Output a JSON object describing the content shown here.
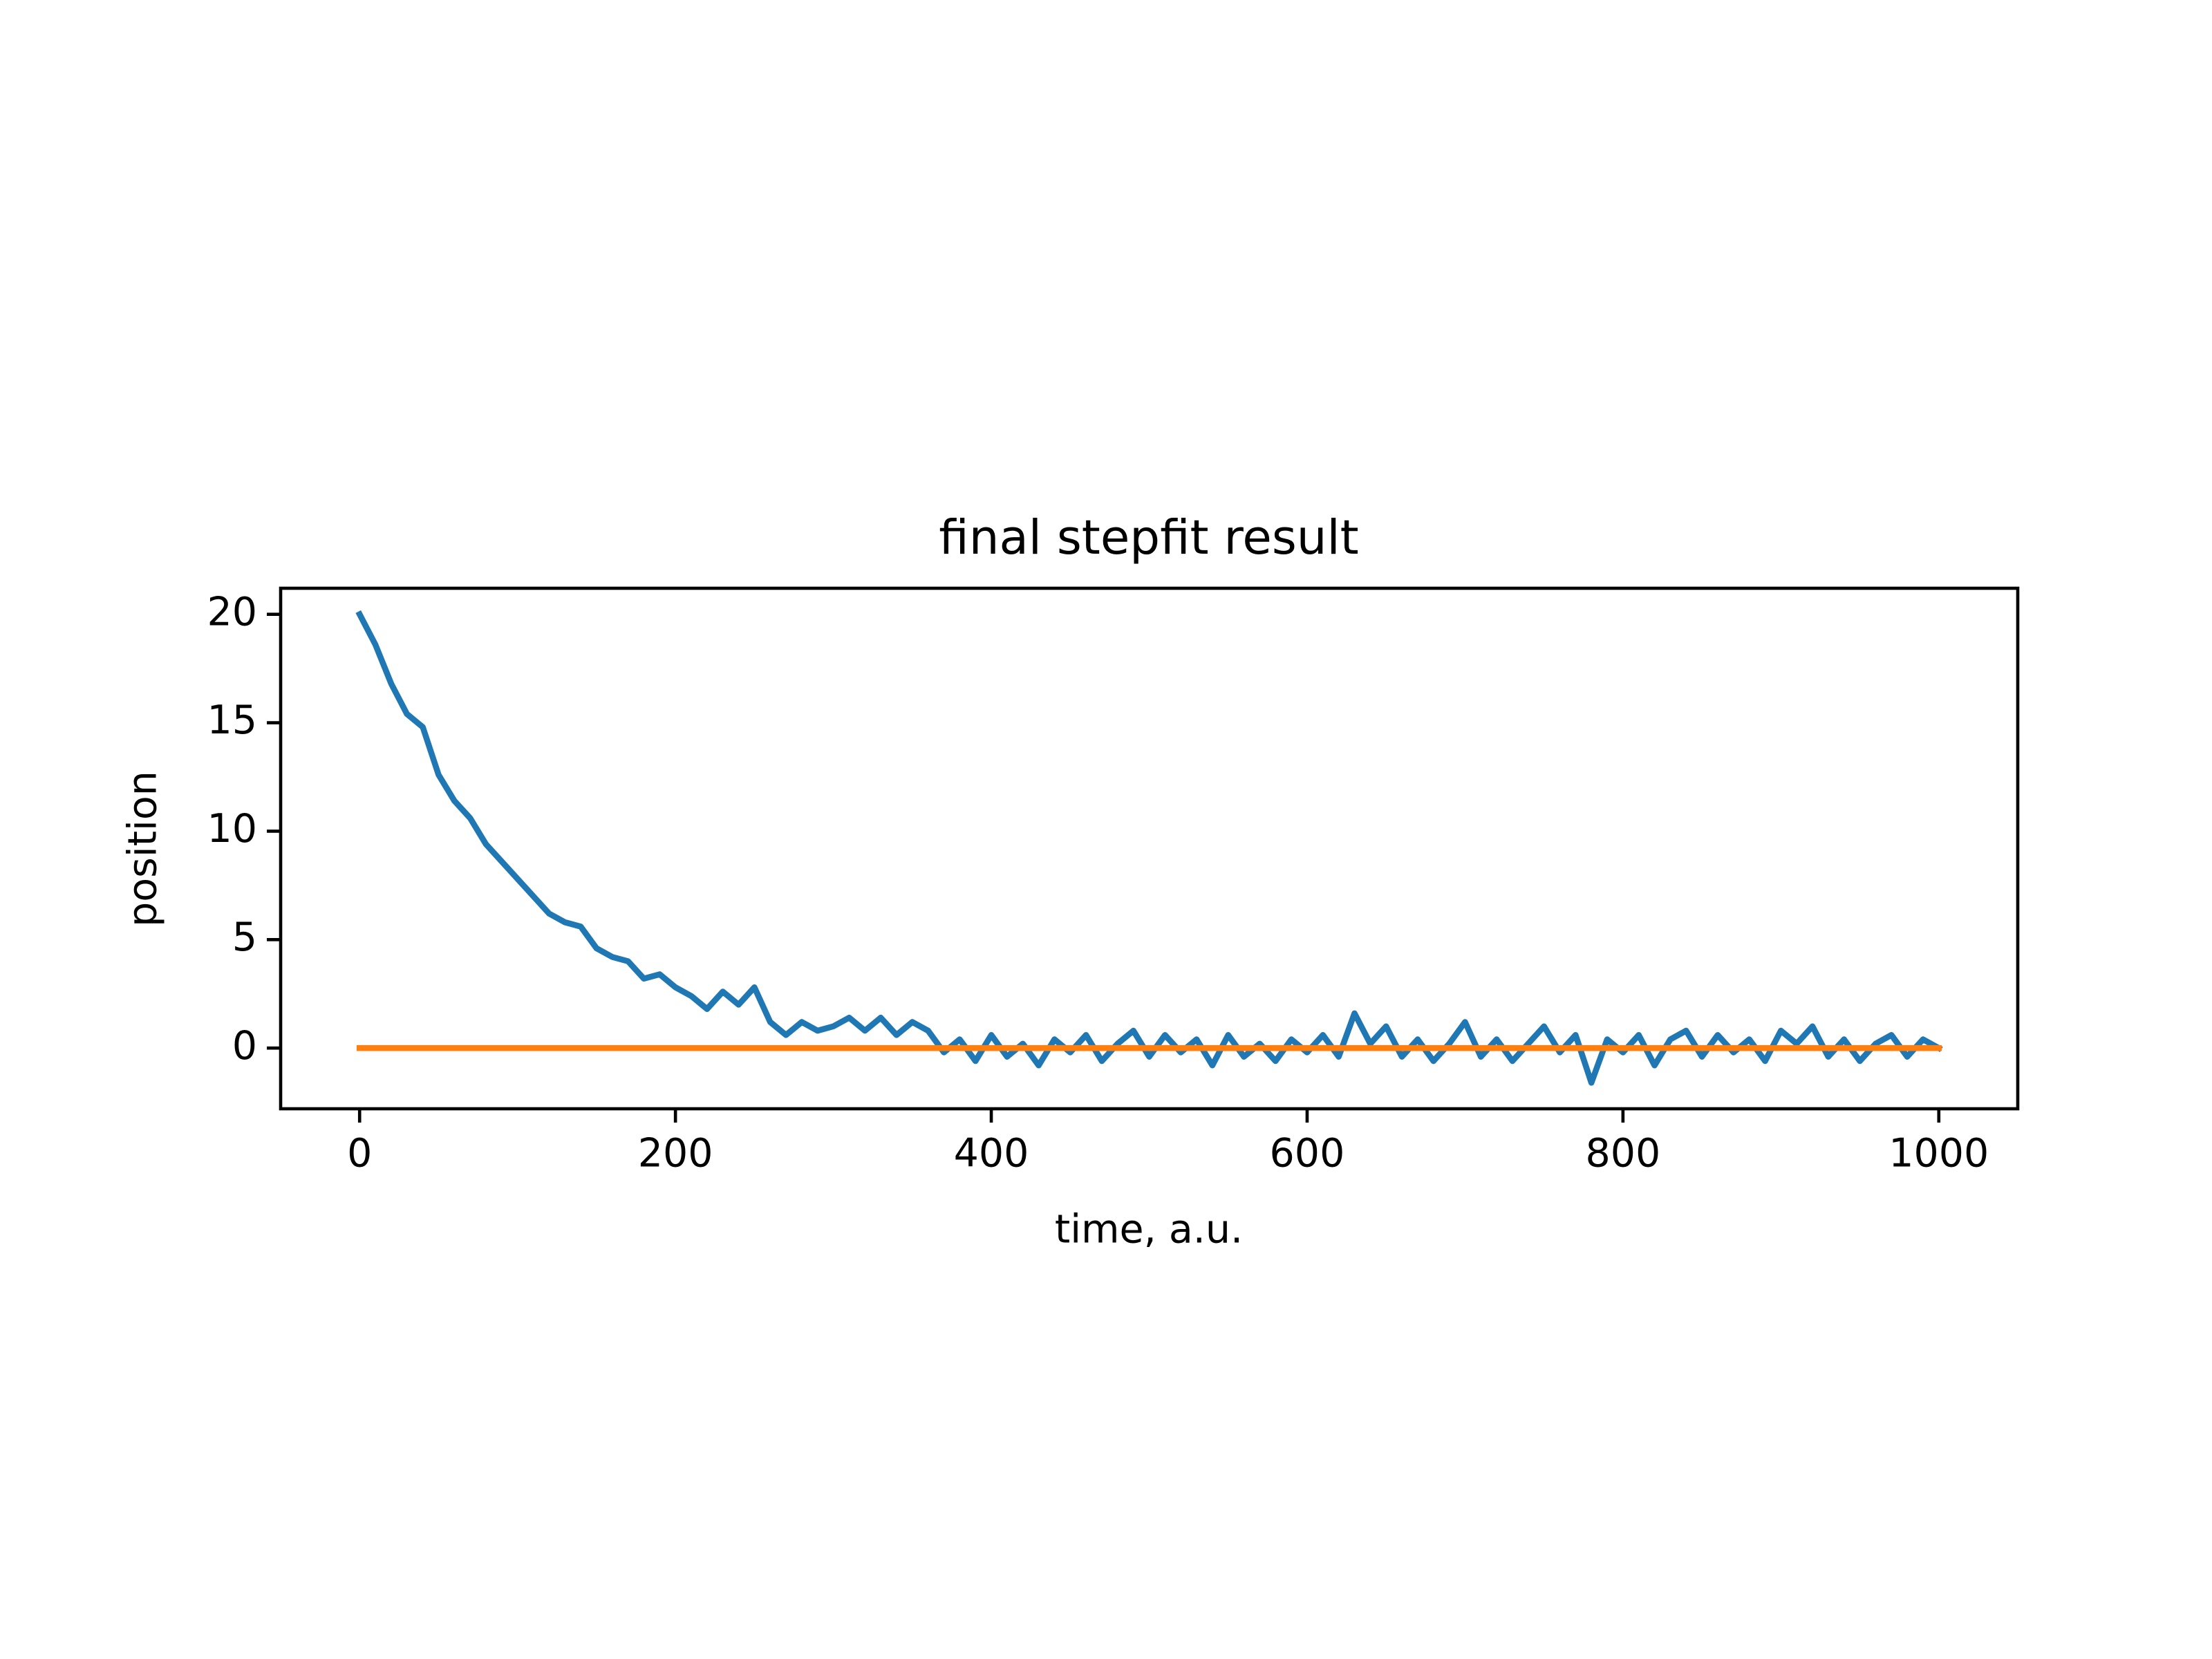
{
  "chart_data": {
    "type": "line",
    "title": "final stepfit result",
    "x_label": "time, a.u.",
    "y_label": "position",
    "x": [
      0,
      10,
      20,
      30,
      40,
      50,
      60,
      70,
      80,
      90,
      100,
      110,
      120,
      130,
      140,
      150,
      160,
      170,
      180,
      190,
      200,
      210,
      220,
      230,
      240,
      250,
      260,
      270,
      280,
      290,
      300,
      310,
      320,
      330,
      340,
      350,
      360,
      370,
      380,
      390,
      400,
      410,
      420,
      430,
      440,
      450,
      460,
      470,
      480,
      490,
      500,
      510,
      520,
      530,
      540,
      550,
      560,
      570,
      580,
      590,
      600,
      610,
      620,
      630,
      640,
      650,
      660,
      670,
      680,
      690,
      700,
      710,
      720,
      730,
      740,
      750,
      760,
      770,
      780,
      790,
      800,
      810,
      820,
      830,
      840,
      850,
      860,
      870,
      880,
      890,
      900,
      910,
      920,
      930,
      940,
      950,
      960,
      970,
      980,
      990,
      1000
    ],
    "series": [
      {
        "color": "#1f77b4",
        "values": [
          20.0,
          18.6,
          16.8,
          15.4,
          14.8,
          12.6,
          11.4,
          10.6,
          9.4,
          8.6,
          7.8,
          7.0,
          6.2,
          5.8,
          5.6,
          4.6,
          4.2,
          4.0,
          3.2,
          3.4,
          2.8,
          2.4,
          1.8,
          2.6,
          2.0,
          2.8,
          1.2,
          0.6,
          1.2,
          0.8,
          1.0,
          1.4,
          0.8,
          1.4,
          0.6,
          1.2,
          0.8,
          -0.2,
          0.4,
          -0.6,
          0.6,
          -0.4,
          0.2,
          -0.8,
          0.4,
          -0.2,
          0.6,
          -0.6,
          0.2,
          0.8,
          -0.4,
          0.6,
          -0.2,
          0.4,
          -0.8,
          0.6,
          -0.4,
          0.2,
          -0.6,
          0.4,
          -0.2,
          0.6,
          -0.4,
          1.6,
          0.2,
          1.0,
          -0.4,
          0.4,
          -0.6,
          0.2,
          1.2,
          -0.4,
          0.4,
          -0.6,
          0.2,
          1.0,
          -0.2,
          0.6,
          -1.6,
          0.4,
          -0.2,
          0.6,
          -0.8,
          0.4,
          0.8,
          -0.4,
          0.6,
          -0.2,
          0.4,
          -0.6,
          0.8,
          0.2,
          1.0,
          -0.4,
          0.4,
          -0.6,
          0.2,
          0.6,
          -0.4,
          0.4,
          0.0
        ]
      },
      {
        "color": "#ff7f0e",
        "values": [
          0,
          0,
          0,
          0,
          0,
          0,
          0,
          0,
          0,
          0,
          0,
          0,
          0,
          0,
          0,
          0,
          0,
          0,
          0,
          0,
          0,
          0,
          0,
          0,
          0,
          0,
          0,
          0,
          0,
          0,
          0,
          0,
          0,
          0,
          0,
          0,
          0,
          0,
          0,
          0,
          0,
          0,
          0,
          0,
          0,
          0,
          0,
          0,
          0,
          0,
          0,
          0,
          0,
          0,
          0,
          0,
          0,
          0,
          0,
          0,
          0,
          0,
          0,
          0,
          0,
          0,
          0,
          0,
          0,
          0,
          0,
          0,
          0,
          0,
          0,
          0,
          0,
          0,
          0,
          0,
          0,
          0,
          0,
          0,
          0,
          0,
          0,
          0,
          0,
          0,
          0,
          0,
          0,
          0,
          0,
          0,
          0,
          0,
          0,
          0,
          0
        ]
      }
    ],
    "xlim": [
      -50,
      1050
    ],
    "ylim": [
      -2.8,
      21.2
    ],
    "xticks": [
      0,
      200,
      400,
      600,
      800,
      1000
    ],
    "yticks": [
      0,
      5,
      10,
      15,
      20
    ],
    "grid": false
  }
}
